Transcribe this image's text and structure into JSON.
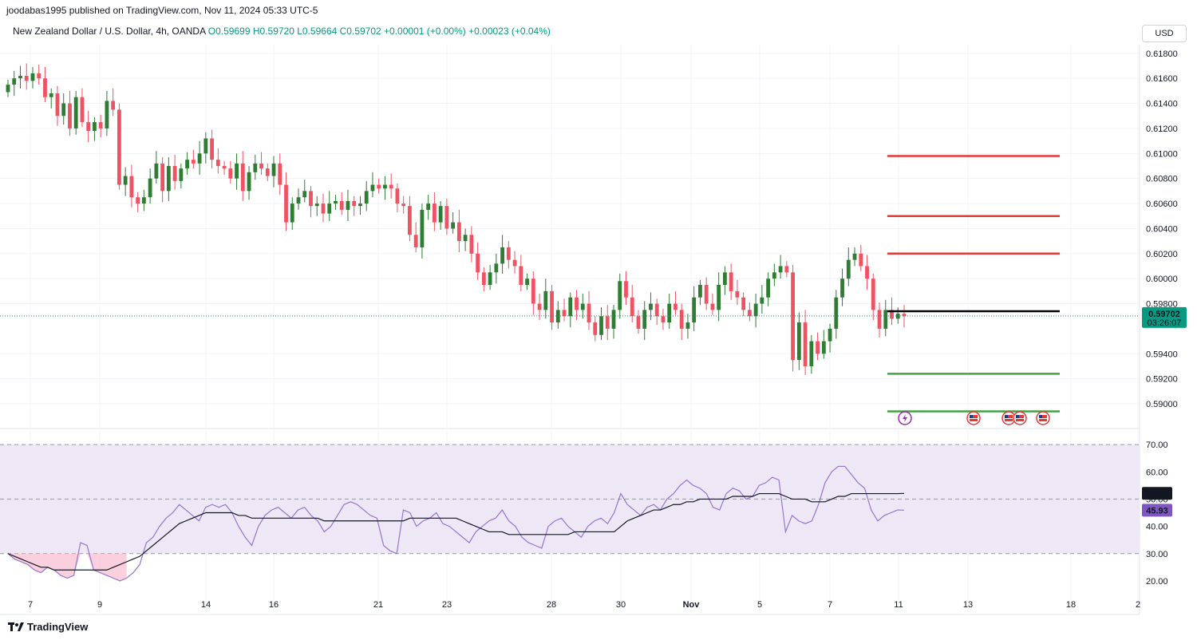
{
  "header": {
    "publisher": "joodabas1995 published on TradingView.com, Nov 11, 2024 05:33 UTC-5",
    "symbol": "New Zealand Dollar / U.S. Dollar, 4h, OANDA",
    "open": "O0.59699",
    "high": "H0.59720",
    "low": "L0.59664",
    "close": "C0.59702",
    "change1": "+0.00001 (+0.00%)",
    "change2": "+0.00023 (+0.04%)",
    "currency": "USD"
  },
  "brand": {
    "logo_text": "TradingView",
    "logo_icon": "tradingview-logo-icon"
  },
  "colors": {
    "up": "#089981",
    "down": "#f23645",
    "upCandle": "#2e7d32",
    "downCandle": "#ef5361",
    "rsi": "#9575cd",
    "rsiMa": "#131722",
    "band": "#ede7f6"
  },
  "chart_data": {
    "type": "candlestick",
    "price_axis": {
      "ylim": [
        0.5886,
        0.6192
      ],
      "ticks": [
        "0.61800",
        "0.61600",
        "0.61400",
        "0.61200",
        "0.61000",
        "0.60800",
        "0.60600",
        "0.60400",
        "0.60200",
        "0.60000",
        "0.59800",
        "0.59400",
        "0.59200",
        "0.59000"
      ],
      "last_price_label": "0.59702",
      "countdown_label": "03:26:07",
      "last_price": 0.59702
    },
    "date_labels": [
      "7",
      "9",
      "14",
      "16",
      "21",
      "23",
      "28",
      "30",
      "Nov",
      "5",
      "7",
      "11",
      "13",
      "18",
      "2"
    ],
    "closes": [
      0.6155,
      0.616,
      0.6162,
      0.6158,
      0.6164,
      0.616,
      0.6145,
      0.6148,
      0.613,
      0.614,
      0.612,
      0.6145,
      0.6125,
      0.6118,
      0.6125,
      0.612,
      0.6142,
      0.6135,
      0.6075,
      0.6082,
      0.6065,
      0.606,
      0.6065,
      0.608,
      0.6092,
      0.607,
      0.609,
      0.6078,
      0.6088,
      0.6095,
      0.6092,
      0.61,
      0.6112,
      0.6095,
      0.609,
      0.6088,
      0.608,
      0.6092,
      0.607,
      0.6085,
      0.6092,
      0.6088,
      0.6082,
      0.6092,
      0.6075,
      0.6045,
      0.606,
      0.6065,
      0.607,
      0.6058,
      0.606,
      0.6052,
      0.606,
      0.6062,
      0.6055,
      0.6062,
      0.6058,
      0.606,
      0.607,
      0.6075,
      0.6072,
      0.6075,
      0.6072,
      0.606,
      0.6058,
      0.6035,
      0.6025,
      0.6055,
      0.606,
      0.6045,
      0.6058,
      0.604,
      0.6045,
      0.603,
      0.6035,
      0.602,
      0.6005,
      0.5995,
      0.6005,
      0.6012,
      0.6025,
      0.6015,
      0.601,
      0.5995,
      0.6,
      0.598,
      0.5975,
      0.599,
      0.5965,
      0.5975,
      0.597,
      0.5985,
      0.5975,
      0.598,
      0.5965,
      0.5955,
      0.597,
      0.596,
      0.5975,
      0.5998,
      0.5985,
      0.597,
      0.596,
      0.5975,
      0.598,
      0.597,
      0.5965,
      0.598,
      0.5975,
      0.596,
      0.5965,
      0.5985,
      0.5995,
      0.598,
      0.5975,
      0.5995,
      0.6005,
      0.599,
      0.5985,
      0.5975,
      0.597,
      0.598,
      0.5985,
      0.6,
      0.6005,
      0.601,
      0.6005,
      0.5935,
      0.5965,
      0.593,
      0.595,
      0.594,
      0.595,
      0.596,
      0.5985,
      0.6,
      0.6015,
      0.602,
      0.601,
      0.6,
      0.5975,
      0.596,
      0.5975,
      0.5968,
      0.5972,
      0.597
    ],
    "horizontal_levels": [
      {
        "price": 0.6098,
        "color": "#e53935"
      },
      {
        "price": 0.605,
        "color": "#e53935"
      },
      {
        "price": 0.602,
        "color": "#e53935"
      },
      {
        "price": 0.5974,
        "color": "#000000"
      },
      {
        "price": 0.5924,
        "color": "#43a047"
      },
      {
        "price": 0.5894,
        "color": "#43a047"
      }
    ],
    "event_icons": [
      "lightning-icon",
      "us-flag-icon",
      "us-flag-icon",
      "us-flag-icon",
      "us-flag-icon"
    ],
    "rsi": {
      "ylim": [
        15,
        75
      ],
      "ticks": [
        "70.00",
        "60.00",
        "50.00",
        "40.00",
        "30.00",
        "20.00"
      ],
      "upper_band": 70,
      "mid": 50,
      "lower_band": 30,
      "rsi_label": "45.93",
      "ma_label": "52.08",
      "rsi_value": 45.93,
      "ma_value": 52.08,
      "rsi_values": [
        30,
        28,
        27,
        26,
        24,
        23,
        25,
        24,
        22,
        21,
        22,
        34,
        33,
        24,
        23,
        22,
        21,
        20,
        21,
        23,
        26,
        34,
        36,
        40,
        43,
        45,
        48,
        46,
        44,
        42,
        47,
        48,
        47,
        48,
        45,
        40,
        36,
        33,
        40,
        44,
        46,
        47,
        45,
        43,
        46,
        47,
        44,
        42,
        38,
        40,
        44,
        48,
        49,
        48,
        46,
        44,
        43,
        33,
        31,
        30,
        46,
        45,
        40,
        42,
        43,
        45,
        41,
        40,
        38,
        36,
        34,
        38,
        40,
        42,
        43,
        46,
        42,
        40,
        36,
        34,
        33,
        32,
        40,
        42,
        43,
        40,
        38,
        36,
        40,
        42,
        43,
        41,
        45,
        52,
        48,
        46,
        44,
        47,
        48,
        46,
        50,
        52,
        55,
        57,
        55,
        54,
        52,
        47,
        46,
        52,
        54,
        53,
        50,
        51,
        55,
        56,
        58,
        57,
        38,
        44,
        42,
        41,
        42,
        48,
        56,
        60,
        62,
        62,
        59,
        56,
        54,
        46,
        42,
        44,
        45,
        46,
        45.93
      ],
      "ma_values": [
        30,
        29,
        28,
        27,
        26,
        25,
        25,
        24,
        24,
        24,
        24,
        24,
        24,
        24,
        24,
        24,
        25,
        26,
        27,
        28,
        29,
        31,
        33,
        35,
        37,
        39,
        41,
        42,
        43,
        44,
        45,
        45,
        45,
        45,
        45,
        44,
        44,
        43,
        43,
        43,
        43,
        43,
        43,
        43,
        43,
        43,
        43,
        43,
        42,
        42,
        42,
        42,
        42,
        42,
        42,
        42,
        42,
        42,
        42,
        42,
        42,
        43,
        43,
        43,
        43,
        43,
        43,
        43,
        43,
        42,
        41,
        40,
        39,
        38,
        38,
        38,
        37,
        37,
        37,
        37,
        37,
        37,
        37,
        37,
        37,
        37,
        38,
        38,
        38,
        38,
        38,
        38,
        38,
        40,
        42,
        43,
        44,
        45,
        46,
        46,
        47,
        48,
        48,
        49,
        49,
        50,
        50,
        50,
        50,
        50,
        51,
        51,
        51,
        51,
        52,
        52,
        52,
        52,
        51,
        50,
        50,
        50,
        49,
        49,
        49,
        50,
        51,
        51,
        52,
        52,
        52,
        52,
        52,
        52,
        52,
        52,
        52.08
      ]
    }
  }
}
